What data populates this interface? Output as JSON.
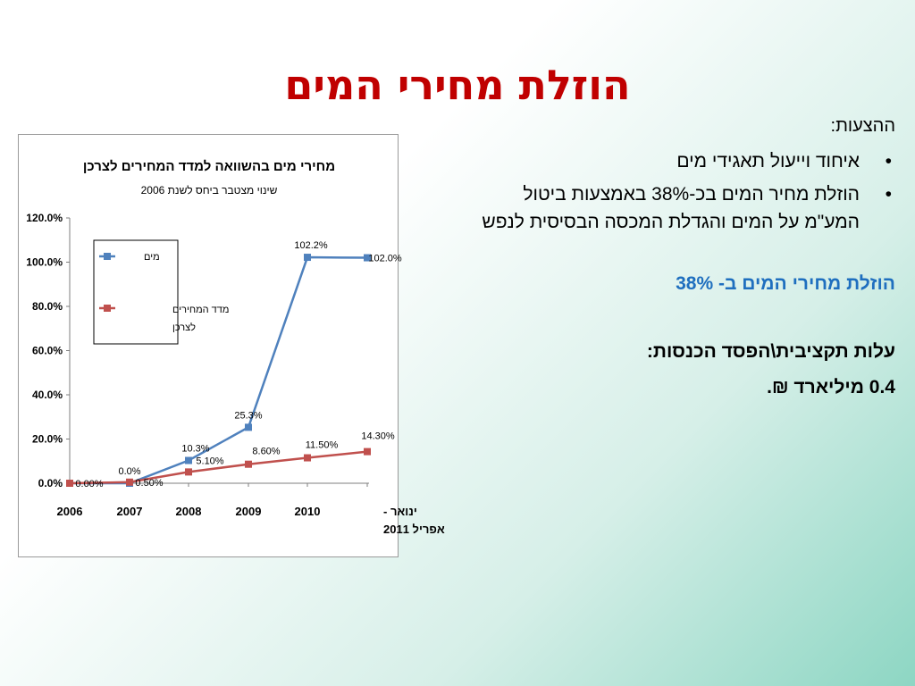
{
  "slide": {
    "title": "הוזלת מחירי המים",
    "title_color": "#c00000",
    "suggestions_heading": "ההצעות:",
    "bullets": [
      "איחוד וייעול תאגידי מים",
      "הוזלת מחיר המים בכ-38% באמצעות ביטול המע\"מ על המים והגדלת המכסה הבסיסית לנפש"
    ],
    "highlight": "הוזלת מחירי המים ב- 38%",
    "highlight_color": "#1f6fbf",
    "cost_heading": "עלות תקציבית\\הפסד הכנסות:",
    "cost_value": "0.4 מיליארד ₪."
  },
  "chart_data": {
    "type": "line",
    "title": "מחירי מים בהשוואה למדד המחירים לצרכן",
    "subtitle": "שינוי מצטבר ביחס לשנת 2006",
    "categories": [
      "2006",
      "2007",
      "2008",
      "2009",
      "2010",
      "ינואר - אפריל 2011"
    ],
    "ylim": [
      0,
      120
    ],
    "yticks": [
      "0.0%",
      "20.0%",
      "40.0%",
      "60.0%",
      "80.0%",
      "100.0%",
      "120.0%"
    ],
    "ytick_values": [
      0,
      20,
      40,
      60,
      80,
      100,
      120
    ],
    "legend_position": "top-left",
    "series": [
      {
        "name": "מים",
        "color": "#4f81bd",
        "values": [
          0.0,
          0.0,
          10.3,
          25.3,
          102.2,
          102.0
        ],
        "labels": [
          "",
          "0.0%",
          "10.3%",
          "25.3%",
          "102.2%",
          "102.0%"
        ]
      },
      {
        "name": "מדד המחירים לצרכן",
        "color": "#c0504d",
        "values": [
          0.0,
          0.5,
          5.1,
          8.6,
          11.5,
          14.3
        ],
        "labels": [
          "0.00%",
          "0.50%",
          "5.10%",
          "8.60%",
          "11.50%",
          "14.30%"
        ]
      }
    ]
  }
}
